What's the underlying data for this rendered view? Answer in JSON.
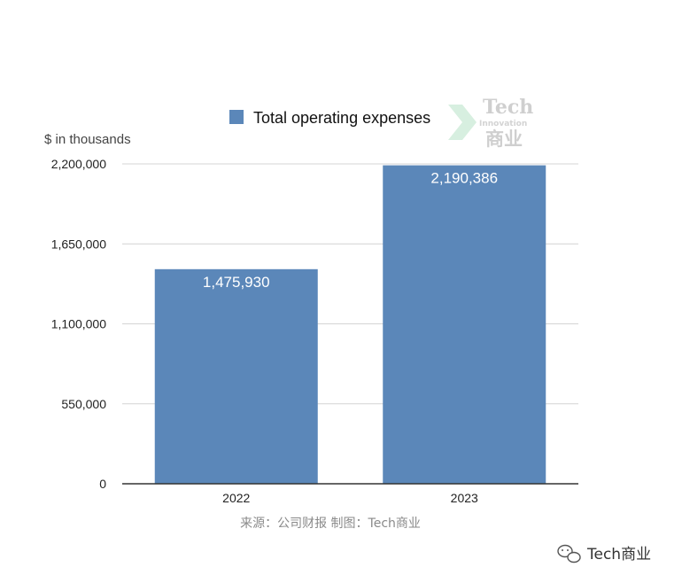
{
  "chart_data": {
    "type": "bar",
    "categories": [
      "2022",
      "2023"
    ],
    "series": [
      {
        "name": "Total operating expenses",
        "values": [
          1475930,
          2190386
        ]
      }
    ],
    "data_labels": [
      "1,475,930",
      "2,190,386"
    ],
    "ylabel": "$ in thousands",
    "xlabel": "",
    "ylim": [
      0,
      2200000
    ],
    "yticks": [
      0,
      550000,
      1100000,
      1650000,
      2200000
    ],
    "ytick_labels": [
      "0",
      "550,000",
      "1,100,000",
      "1,650,000",
      "2,200,000"
    ],
    "grid": true,
    "legend_position": "top",
    "bar_color": "#5b87b9",
    "grid_color": "#d4d4d4",
    "axis_color": "#333333"
  },
  "source": "来源：公司财报 制图：Tech商业",
  "watermark": {
    "title": "Tech",
    "subtitle": "Innovation",
    "cn": "商业"
  },
  "brand": {
    "icon": "wechat-icon",
    "label": "Tech商业"
  }
}
